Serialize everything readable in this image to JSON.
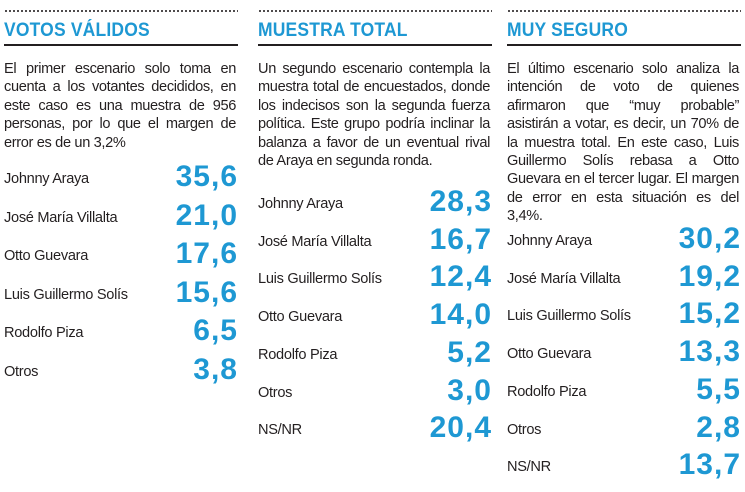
{
  "colors": {
    "accent": "#1e98d3",
    "text": "#231f20",
    "background": "#ffffff"
  },
  "columns": [
    {
      "title": "VOTOS VÁLIDOS",
      "description": "El primer escenario solo toma en cuenta a los votantes decididos, en este caso es una muestra de 956 personas, por lo que el margen de error es de un 3,2%",
      "rows": [
        {
          "name": "Johnny Araya",
          "value": "35,6"
        },
        {
          "name": "José María Villalta",
          "value": "21,0"
        },
        {
          "name": "Otto Guevara",
          "value": "17,6"
        },
        {
          "name": "Luis Guillermo Solís",
          "value": "15,6"
        },
        {
          "name": "Rodolfo Piza",
          "value": "6,5"
        },
        {
          "name": "Otros",
          "value": "3,8"
        }
      ]
    },
    {
      "title": "MUESTRA TOTAL",
      "description": "Un segundo escenario contempla la muestra total de encuestados, donde los indecisos son la segunda fuerza política. Este grupo podría inclinar la balanza a favor de un eventual rival de Araya en segunda ronda.",
      "rows": [
        {
          "name": "Johnny Araya",
          "value": "28,3"
        },
        {
          "name": "José María Villalta",
          "value": "16,7"
        },
        {
          "name": "Luis Guillermo Solís",
          "value": "12,4"
        },
        {
          "name": "Otto Guevara",
          "value": "14,0"
        },
        {
          "name": "Rodolfo Piza",
          "value": "5,2"
        },
        {
          "name": "Otros",
          "value": "3,0"
        },
        {
          "name": "NS/NR",
          "value": "20,4"
        }
      ]
    },
    {
      "title": "MUY SEGURO",
      "description": "El último escenario solo analiza la intención de voto de quienes afirmaron que “muy probable” asistirán a votar, es decir, un 70% de la muestra total. En este caso, Luis Guillermo Solís rebasa a Otto Guevara en el tercer lugar. El margen de error en esta situación es del 3,4%.",
      "rows": [
        {
          "name": "Johnny Araya",
          "value": "30,2"
        },
        {
          "name": "José María Villalta",
          "value": "19,2"
        },
        {
          "name": "Luis Guillermo Solís",
          "value": "15,2"
        },
        {
          "name": "Otto Guevara",
          "value": "13,3"
        },
        {
          "name": "Rodolfo Piza",
          "value": "5,5"
        },
        {
          "name": "Otros",
          "value": "2,8"
        },
        {
          "name": "NS/NR",
          "value": "13,7"
        }
      ]
    }
  ],
  "chart_data": [
    {
      "type": "table",
      "title": "VOTOS VÁLIDOS",
      "categories": [
        "Johnny Araya",
        "José María Villalta",
        "Otto Guevara",
        "Luis Guillermo Solís",
        "Rodolfo Piza",
        "Otros"
      ],
      "values": [
        35.6,
        21.0,
        17.6,
        15.6,
        6.5,
        3.8
      ]
    },
    {
      "type": "table",
      "title": "MUESTRA TOTAL",
      "categories": [
        "Johnny Araya",
        "José María Villalta",
        "Luis Guillermo Solís",
        "Otto Guevara",
        "Rodolfo Piza",
        "Otros",
        "NS/NR"
      ],
      "values": [
        28.3,
        16.7,
        12.4,
        14.0,
        5.2,
        3.0,
        20.4
      ]
    },
    {
      "type": "table",
      "title": "MUY SEGURO",
      "categories": [
        "Johnny Araya",
        "José María Villalta",
        "Luis Guillermo Solís",
        "Otto Guevara",
        "Rodolfo Piza",
        "Otros",
        "NS/NR"
      ],
      "values": [
        30.2,
        19.2,
        15.2,
        13.3,
        5.5,
        2.8,
        13.7
      ]
    }
  ]
}
